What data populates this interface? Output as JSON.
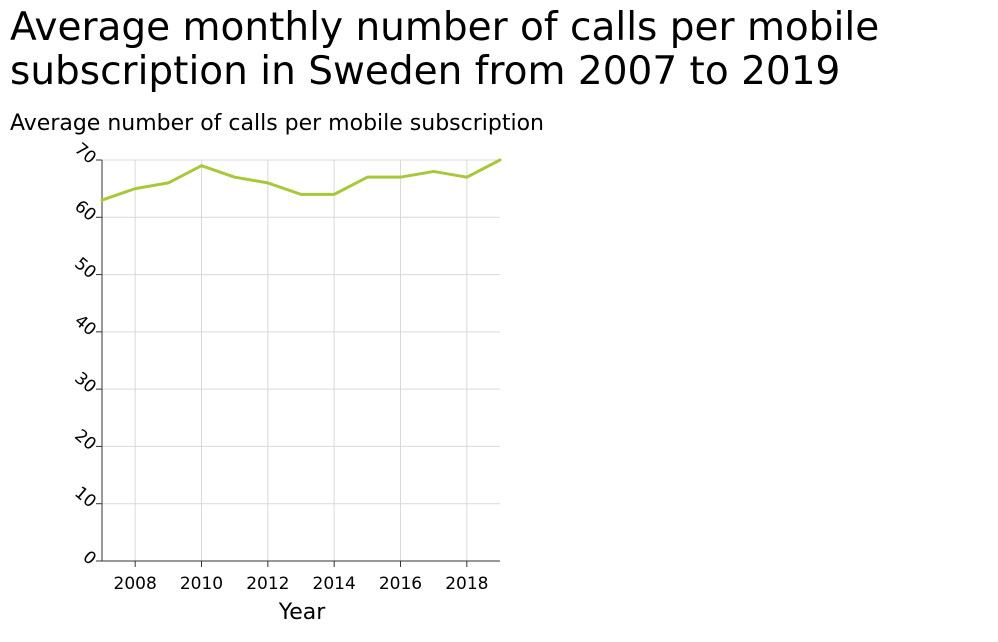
{
  "chart_data": {
    "type": "line",
    "title": "Average monthly number of calls per mobile subscription in Sweden from 2007 to 2019",
    "ylabel": "Average number of calls per mobile subscription",
    "xlabel": "Year",
    "x": [
      2007,
      2008,
      2009,
      2010,
      2011,
      2012,
      2013,
      2014,
      2015,
      2016,
      2017,
      2018,
      2019
    ],
    "series": [
      {
        "values": [
          63,
          65,
          66,
          69,
          67,
          66,
          64,
          64,
          67,
          67,
          68,
          67,
          70
        ]
      }
    ],
    "xlim": [
      2007,
      2019
    ],
    "ylim": [
      0,
      70
    ],
    "xticks": [
      2008,
      2010,
      2012,
      2014,
      2016,
      2018
    ],
    "yticks": [
      0,
      10,
      20,
      30,
      40,
      50,
      60,
      70
    ],
    "grid": true,
    "line_color": "#a8c73a",
    "grid_color": "#d9d9d9"
  }
}
